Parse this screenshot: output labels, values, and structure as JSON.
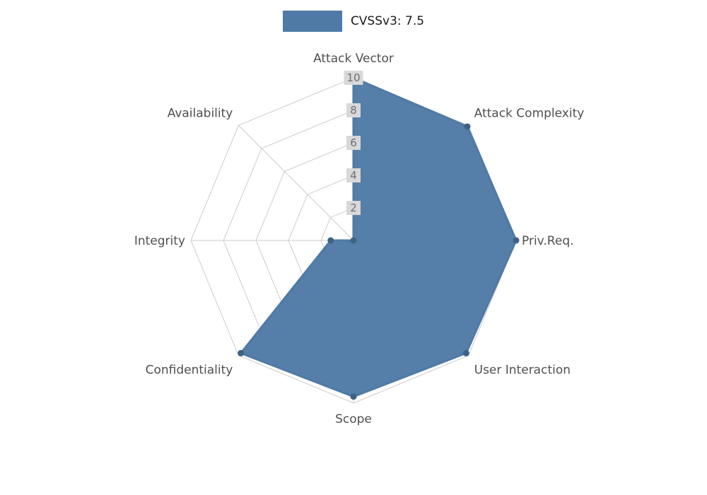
{
  "legend": {
    "label": "CVSSv3: 7.5"
  },
  "chart_data": {
    "type": "radar",
    "title": "",
    "categories": [
      "Attack Vector",
      "Attack Complexity",
      "Priv.Req.",
      "User Interaction",
      "Scope",
      "Confidentiality",
      "Integrity",
      "Availability"
    ],
    "series": [
      {
        "name": "CVSSv3: 7.5",
        "values": [
          10,
          9.9,
          10,
          9.8,
          9.6,
          9.8,
          1.4,
          0
        ]
      }
    ],
    "ticks": [
      2,
      4,
      6,
      8,
      10
    ],
    "ylim": [
      0,
      10
    ],
    "grid": true,
    "legend_position": "top-center",
    "colors": {
      "series": "#4f7aa6",
      "marker": "#3e6284",
      "grid": "#cccccc",
      "tick_bg": "#d8d8d8",
      "tick_text": "#6e6e6e",
      "label": "#4f4f4f",
      "legend_text": "#1a1a1a"
    }
  }
}
